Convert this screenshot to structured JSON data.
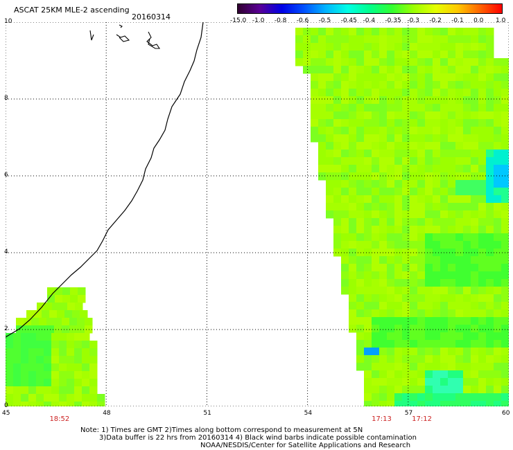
{
  "header": {
    "title": "ASCAT 25KM MLE-2 ascending",
    "date": "20160314"
  },
  "colorbar": {
    "labels": [
      "-15.0",
      "-1.0",
      "-0.8",
      "-0.6",
      "-0.5",
      "-0.45",
      "-0.4",
      "-0.35",
      "-0.3",
      "-0.2",
      "-0.1",
      "0.0",
      "1.0"
    ],
    "colors": [
      "#300030",
      "#5a0096",
      "#0000e6",
      "#0050ff",
      "#00b4ff",
      "#00ffe6",
      "#00ff8c",
      "#32ff32",
      "#9cff00",
      "#e6ff00",
      "#ffc800",
      "#ff6400",
      "#ff0000"
    ]
  },
  "map": {
    "x_axis": {
      "min": 45,
      "max": 60,
      "ticks": [
        "45",
        "48",
        "51",
        "54",
        "57",
        "60"
      ]
    },
    "y_axis": {
      "min": 0,
      "max": 10,
      "ticks": [
        "0",
        "2",
        "4",
        "6",
        "8",
        "10"
      ]
    },
    "grid": true,
    "times": [
      {
        "label": "18:52",
        "lon": 46.6
      },
      {
        "label": "17:13",
        "lon": 56.2
      },
      {
        "label": "17:12",
        "lon": 57.4
      }
    ]
  },
  "notes": {
    "line1": "Note: 1) Times are GMT 2)Times along bottom correspond to measurement at 5N",
    "line2": "3)Data buffer is 22 hrs from 20160314 4) Black wind barbs indicate possible contamination",
    "line3": "NOAA/NESDIS/Center for Satellite Applications and Research"
  }
}
